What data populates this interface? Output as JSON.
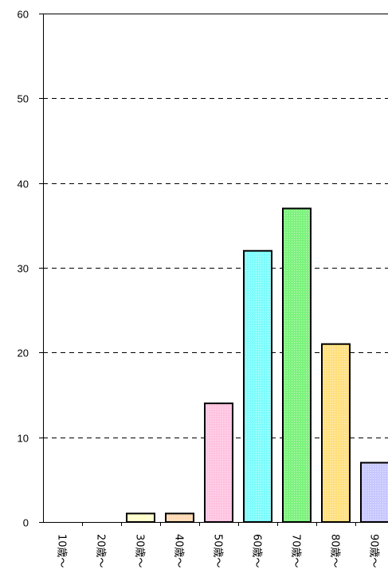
{
  "chart_data": {
    "type": "bar",
    "categories": [
      "10歳～",
      "20歳～",
      "30歳～",
      "40歳～",
      "50歳～",
      "60歳～",
      "70歳～",
      "80歳～",
      "90歳～"
    ],
    "values": [
      0,
      0,
      1,
      1,
      14,
      32,
      37,
      21,
      7
    ],
    "colors": [
      "#ffffff",
      "#ffffff",
      "#ffffcc",
      "#ffd9b3",
      "#ffc4e1",
      "#7ffcfc",
      "#7df27d",
      "#ffe080",
      "#c8c8ff"
    ],
    "ylim": [
      0,
      60
    ],
    "yticks": [
      0,
      10,
      20,
      30,
      40,
      50,
      60
    ],
    "grid": "horizontal dashed",
    "title": "",
    "xlabel": "",
    "ylabel": ""
  }
}
